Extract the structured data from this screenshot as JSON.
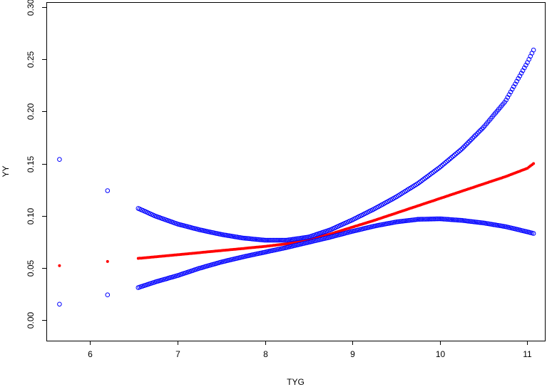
{
  "chart_data": {
    "type": "scatter",
    "title": "",
    "xlabel": "TYG",
    "ylabel": "YY",
    "xlim": [
      5.5,
      11.2
    ],
    "ylim": [
      -0.02,
      0.305
    ],
    "xticks": [
      6,
      7,
      8,
      9,
      10,
      11
    ],
    "yticks": [
      0.0,
      0.05,
      0.1,
      0.15,
      0.2,
      0.25,
      0.3
    ],
    "ytick_labels": [
      "0.00",
      "0.05",
      "0.10",
      "0.15",
      "0.20",
      "0.25",
      "0.30"
    ],
    "grid": false,
    "legend": "none",
    "series": [
      {
        "role": "estimate",
        "color": "#ff0000",
        "marker": "filled-circle",
        "points": [
          [
            5.65,
            0.052
          ],
          [
            6.2,
            0.056
          ],
          [
            6.55,
            0.059
          ],
          [
            6.75,
            0.0605
          ],
          [
            7.0,
            0.0625
          ],
          [
            7.25,
            0.0645
          ],
          [
            7.5,
            0.0665
          ],
          [
            7.75,
            0.0685
          ],
          [
            8.0,
            0.0705
          ],
          [
            8.25,
            0.073
          ],
          [
            8.5,
            0.077
          ],
          [
            8.75,
            0.0825
          ],
          [
            9.0,
            0.089
          ],
          [
            9.25,
            0.0955
          ],
          [
            9.5,
            0.1025
          ],
          [
            9.75,
            0.1095
          ],
          [
            10.0,
            0.1165
          ],
          [
            10.25,
            0.1235
          ],
          [
            10.5,
            0.1305
          ],
          [
            10.75,
            0.1375
          ],
          [
            11.0,
            0.1455
          ],
          [
            11.07,
            0.15
          ]
        ]
      },
      {
        "role": "upper-ci",
        "color": "#0000ff",
        "marker": "open-circle",
        "points": [
          [
            5.65,
            0.154
          ],
          [
            6.2,
            0.124
          ],
          [
            6.55,
            0.107
          ],
          [
            6.75,
            0.0995
          ],
          [
            7.0,
            0.092
          ],
          [
            7.25,
            0.0865
          ],
          [
            7.5,
            0.082
          ],
          [
            7.75,
            0.0785
          ],
          [
            8.0,
            0.0765
          ],
          [
            8.25,
            0.0765
          ],
          [
            8.5,
            0.0795
          ],
          [
            8.75,
            0.0865
          ],
          [
            9.0,
            0.096
          ],
          [
            9.25,
            0.1065
          ],
          [
            9.5,
            0.118
          ],
          [
            9.75,
            0.131
          ],
          [
            10.0,
            0.1465
          ],
          [
            10.25,
            0.164
          ],
          [
            10.5,
            0.185
          ],
          [
            10.75,
            0.21
          ],
          [
            11.0,
            0.247
          ],
          [
            11.07,
            0.259
          ]
        ]
      },
      {
        "role": "lower-ci",
        "color": "#0000ff",
        "marker": "open-circle",
        "points": [
          [
            5.65,
            0.015
          ],
          [
            6.2,
            0.024
          ],
          [
            6.55,
            0.031
          ],
          [
            6.75,
            0.0365
          ],
          [
            7.0,
            0.0425
          ],
          [
            7.25,
            0.0495
          ],
          [
            7.5,
            0.0555
          ],
          [
            7.75,
            0.0605
          ],
          [
            8.0,
            0.065
          ],
          [
            8.25,
            0.0695
          ],
          [
            8.5,
            0.0745
          ],
          [
            8.75,
            0.0795
          ],
          [
            9.0,
            0.085
          ],
          [
            9.25,
            0.09
          ],
          [
            9.5,
            0.094
          ],
          [
            9.75,
            0.0965
          ],
          [
            10.0,
            0.097
          ],
          [
            10.25,
            0.0955
          ],
          [
            10.5,
            0.093
          ],
          [
            10.75,
            0.0895
          ],
          [
            11.0,
            0.0845
          ],
          [
            11.07,
            0.083
          ]
        ]
      }
    ]
  }
}
